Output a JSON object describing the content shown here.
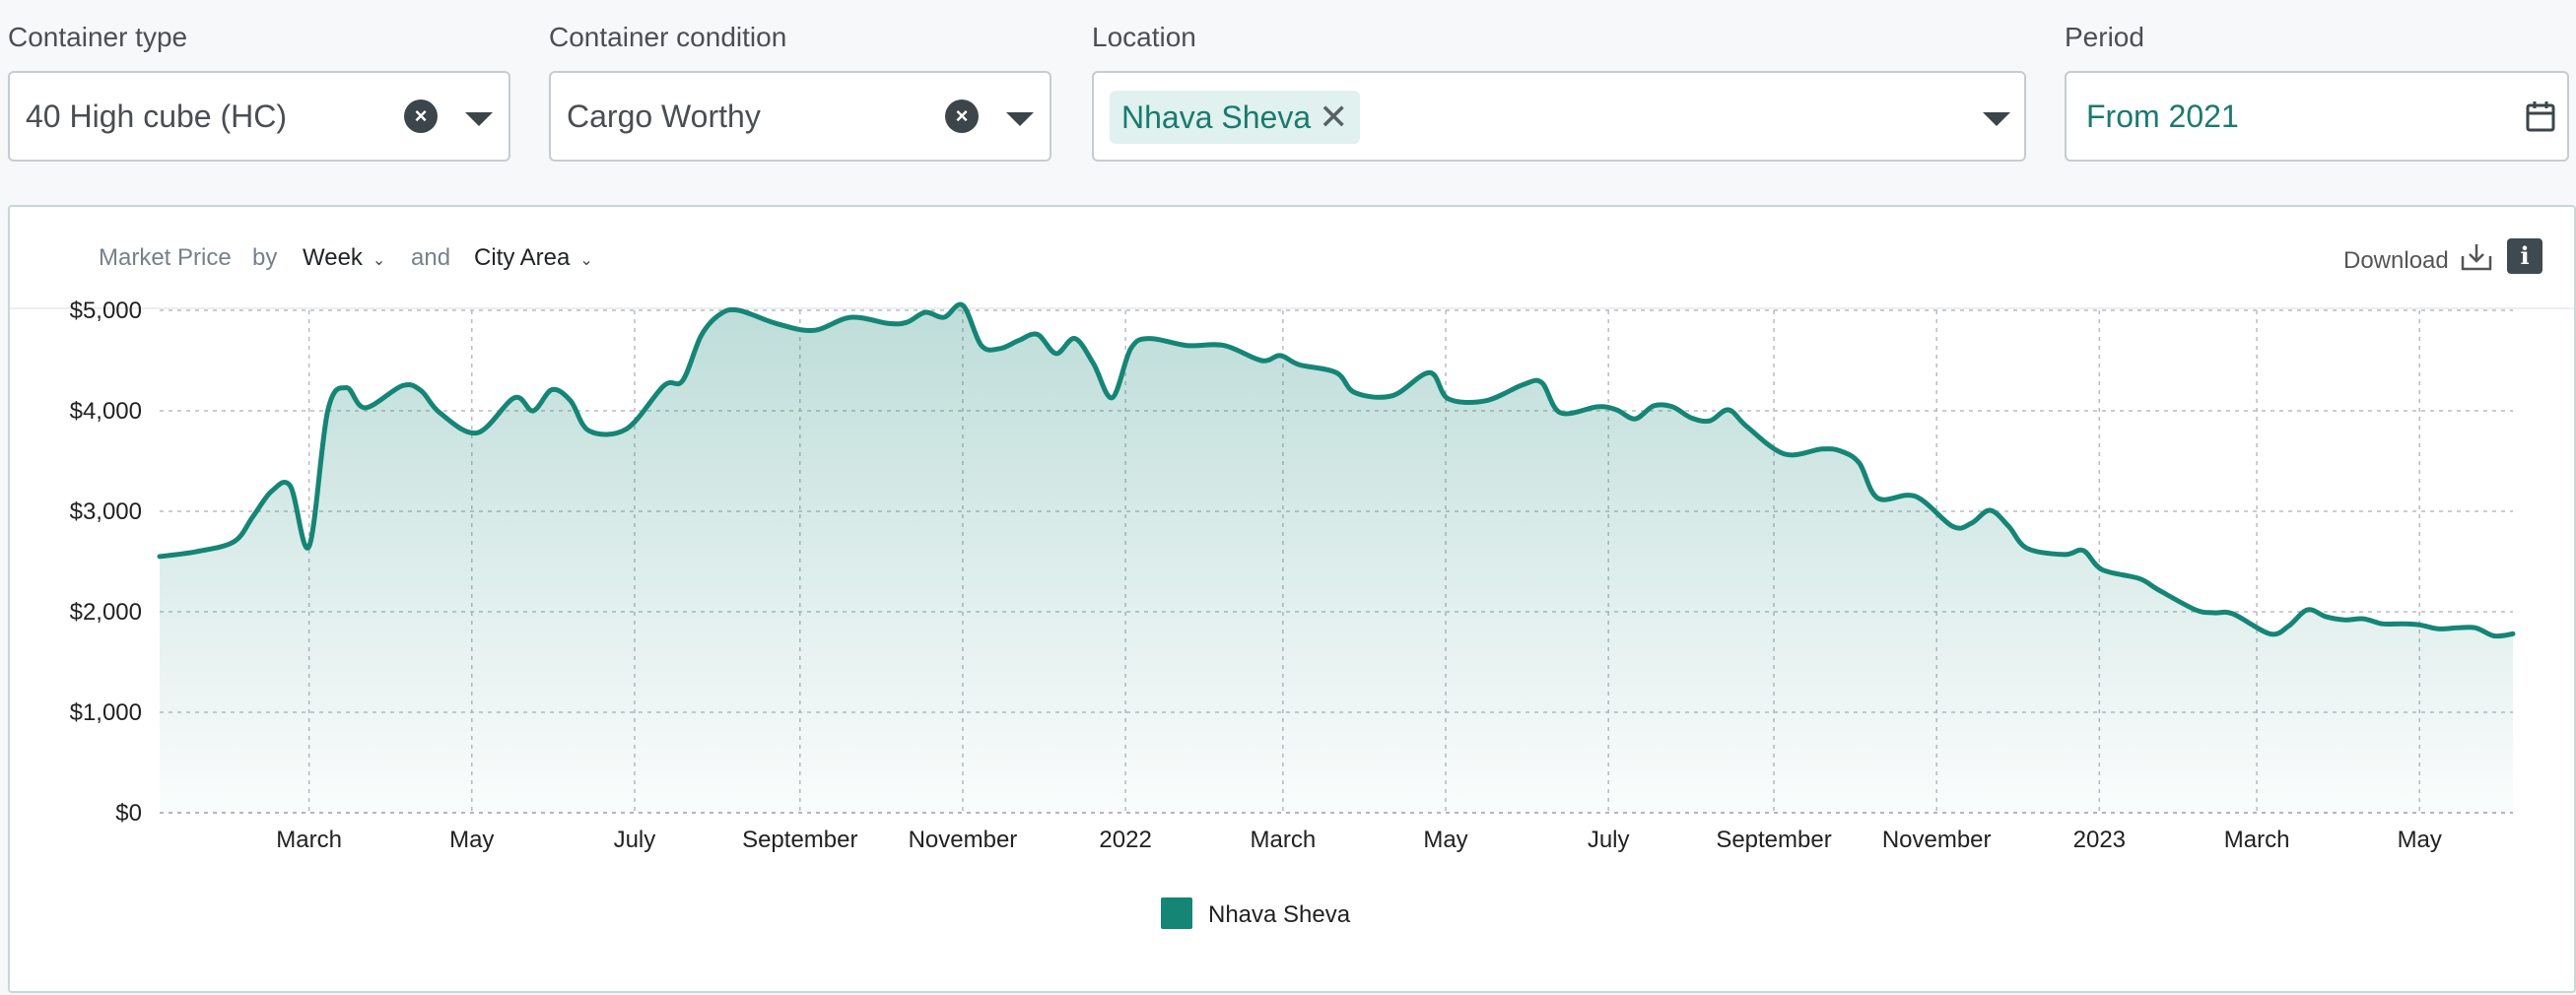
{
  "filters": {
    "container_type": {
      "label": "Container type",
      "value": "40 High cube (HC)"
    },
    "container_condition": {
      "label": "Container condition",
      "value": "Cargo Worthy"
    },
    "location": {
      "label": "Location",
      "chip": "Nhava Sheva"
    },
    "period": {
      "label": "Period",
      "value": "From 2021"
    }
  },
  "toolbar": {
    "metric": "Market Price",
    "by_label": "by",
    "interval": "Week",
    "and_label": "and",
    "grouping": "City Area",
    "download_label": "Download",
    "icons": [
      "clear-icon",
      "chevron-down-icon",
      "close-icon",
      "calendar-icon",
      "download-icon",
      "info-icon"
    ]
  },
  "chart_data": {
    "type": "area",
    "title": "",
    "xlabel": "",
    "ylabel": "",
    "ylim": [
      0,
      5000
    ],
    "y_ticks": [
      0,
      1000,
      2000,
      3000,
      4000,
      5000
    ],
    "y_tick_labels": [
      "$0",
      "$1,000",
      "$2,000",
      "$3,000",
      "$4,000",
      "$5,000"
    ],
    "x_ticks": [
      {
        "date": "2021-03-01",
        "label": "March"
      },
      {
        "date": "2021-05-01",
        "label": "May"
      },
      {
        "date": "2021-07-01",
        "label": "July"
      },
      {
        "date": "2021-09-01",
        "label": "September"
      },
      {
        "date": "2021-11-01",
        "label": "November"
      },
      {
        "date": "2022-01-01",
        "label": "2022"
      },
      {
        "date": "2022-03-01",
        "label": "March"
      },
      {
        "date": "2022-05-01",
        "label": "May"
      },
      {
        "date": "2022-07-01",
        "label": "July"
      },
      {
        "date": "2022-09-01",
        "label": "September"
      },
      {
        "date": "2022-11-01",
        "label": "November"
      },
      {
        "date": "2023-01-01",
        "label": "2023"
      },
      {
        "date": "2023-03-01",
        "label": "March"
      },
      {
        "date": "2023-05-01",
        "label": "May"
      }
    ],
    "xlim": [
      "2021-01-04",
      "2023-06-05"
    ],
    "grid": true,
    "legend": {
      "position": "bottom-center",
      "entries": [
        "Nhava Sheva"
      ]
    },
    "colors": {
      "line": "#158576",
      "fill": "#158576"
    },
    "series": [
      {
        "name": "Nhava Sheva",
        "points": [
          [
            "2021-01-04",
            2550
          ],
          [
            "2021-01-18",
            2600
          ],
          [
            "2021-02-01",
            2700
          ],
          [
            "2021-02-08",
            2950
          ],
          [
            "2021-02-15",
            3200
          ],
          [
            "2021-02-22",
            3250
          ],
          [
            "2021-03-01",
            2650
          ],
          [
            "2021-03-08",
            4000
          ],
          [
            "2021-03-15",
            4230
          ],
          [
            "2021-03-22",
            4030
          ],
          [
            "2021-04-05",
            4250
          ],
          [
            "2021-04-12",
            4200
          ],
          [
            "2021-04-19",
            3980
          ],
          [
            "2021-05-03",
            3780
          ],
          [
            "2021-05-17",
            4130
          ],
          [
            "2021-05-24",
            4000
          ],
          [
            "2021-05-31",
            4210
          ],
          [
            "2021-06-07",
            4100
          ],
          [
            "2021-06-14",
            3800
          ],
          [
            "2021-06-28",
            3820
          ],
          [
            "2021-07-12",
            4250
          ],
          [
            "2021-07-19",
            4300
          ],
          [
            "2021-07-26",
            4750
          ],
          [
            "2021-08-02",
            4960
          ],
          [
            "2021-08-09",
            5000
          ],
          [
            "2021-08-23",
            4870
          ],
          [
            "2021-09-06",
            4800
          ],
          [
            "2021-09-20",
            4930
          ],
          [
            "2021-10-04",
            4870
          ],
          [
            "2021-10-11",
            4880
          ],
          [
            "2021-10-18",
            4980
          ],
          [
            "2021-10-25",
            4930
          ],
          [
            "2021-11-01",
            5050
          ],
          [
            "2021-11-08",
            4650
          ],
          [
            "2021-11-15",
            4620
          ],
          [
            "2021-11-22",
            4700
          ],
          [
            "2021-11-29",
            4760
          ],
          [
            "2021-12-06",
            4570
          ],
          [
            "2021-12-13",
            4720
          ],
          [
            "2021-12-20",
            4470
          ],
          [
            "2021-12-27",
            4130
          ],
          [
            "2022-01-03",
            4620
          ],
          [
            "2022-01-10",
            4720
          ],
          [
            "2022-01-24",
            4650
          ],
          [
            "2022-02-07",
            4650
          ],
          [
            "2022-02-21",
            4500
          ],
          [
            "2022-02-28",
            4550
          ],
          [
            "2022-03-07",
            4460
          ],
          [
            "2022-03-21",
            4380
          ],
          [
            "2022-03-28",
            4180
          ],
          [
            "2022-04-11",
            4150
          ],
          [
            "2022-04-25",
            4380
          ],
          [
            "2022-05-02",
            4120
          ],
          [
            "2022-05-16",
            4100
          ],
          [
            "2022-05-30",
            4260
          ],
          [
            "2022-06-06",
            4280
          ],
          [
            "2022-06-13",
            3980
          ],
          [
            "2022-06-27",
            4040
          ],
          [
            "2022-07-04",
            4010
          ],
          [
            "2022-07-11",
            3920
          ],
          [
            "2022-07-18",
            4050
          ],
          [
            "2022-07-25",
            4040
          ],
          [
            "2022-08-01",
            3930
          ],
          [
            "2022-08-08",
            3900
          ],
          [
            "2022-08-15",
            4010
          ],
          [
            "2022-08-22",
            3840
          ],
          [
            "2022-09-05",
            3570
          ],
          [
            "2022-09-19",
            3620
          ],
          [
            "2022-09-26",
            3600
          ],
          [
            "2022-10-03",
            3480
          ],
          [
            "2022-10-10",
            3130
          ],
          [
            "2022-10-24",
            3150
          ],
          [
            "2022-11-07",
            2850
          ],
          [
            "2022-11-14",
            2880
          ],
          [
            "2022-11-21",
            3010
          ],
          [
            "2022-11-28",
            2850
          ],
          [
            "2022-12-05",
            2630
          ],
          [
            "2022-12-19",
            2570
          ],
          [
            "2022-12-26",
            2610
          ],
          [
            "2023-01-02",
            2420
          ],
          [
            "2023-01-16",
            2330
          ],
          [
            "2023-01-23",
            2220
          ],
          [
            "2023-02-06",
            2020
          ],
          [
            "2023-02-13",
            1990
          ],
          [
            "2023-02-20",
            1980
          ],
          [
            "2023-03-06",
            1780
          ],
          [
            "2023-03-13",
            1860
          ],
          [
            "2023-03-20",
            2020
          ],
          [
            "2023-03-27",
            1950
          ],
          [
            "2023-04-03",
            1920
          ],
          [
            "2023-04-10",
            1930
          ],
          [
            "2023-04-17",
            1880
          ],
          [
            "2023-04-24",
            1880
          ],
          [
            "2023-05-01",
            1870
          ],
          [
            "2023-05-08",
            1830
          ],
          [
            "2023-05-15",
            1840
          ],
          [
            "2023-05-22",
            1840
          ],
          [
            "2023-05-29",
            1760
          ],
          [
            "2023-06-05",
            1780
          ]
        ]
      }
    ]
  }
}
